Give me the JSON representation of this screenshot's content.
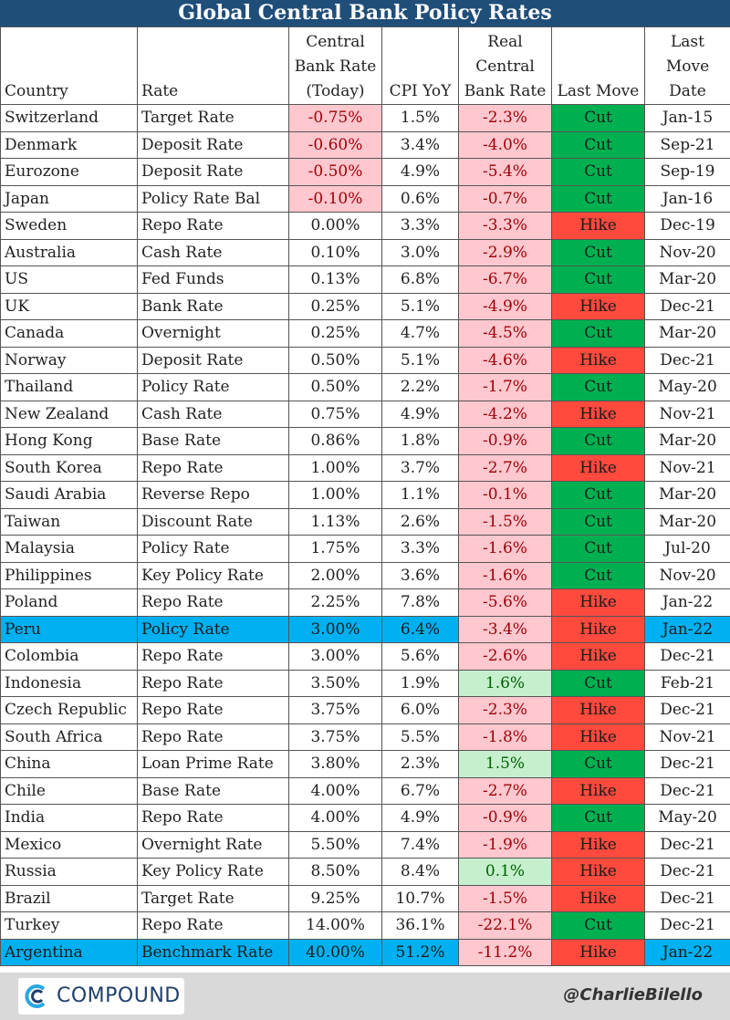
{
  "title": "Global Central Bank Policy Rates",
  "headers": {
    "country": "Country",
    "rate": "Rate",
    "cb_rate": [
      "Central",
      "Bank Rate",
      "(Today)"
    ],
    "cpi": "CPI YoY",
    "real": [
      "Real",
      "Central",
      "Bank Rate"
    ],
    "last_move": "Last Move",
    "last_move_date": [
      "Last",
      "Move",
      "Date"
    ]
  },
  "colors": {
    "header_bar": "#1f4e79",
    "negative_fill": "#ffc7ce",
    "positive_fill": "#c6efce",
    "cut": "#00b050",
    "hike": "#ff4a3d",
    "highlight_row": "#00b0f0"
  },
  "chart_data": {
    "type": "table",
    "title": "Global Central Bank Policy Rates",
    "columns": [
      "Country",
      "Rate",
      "Central Bank Rate (Today)",
      "CPI YoY",
      "Real Central Bank Rate",
      "Last Move",
      "Last Move Date"
    ],
    "highlighted_rows": [
      "Peru",
      "Argentina"
    ],
    "rows": [
      {
        "country": "Switzerland",
        "rate": "Target Rate",
        "cb_rate": "-0.75%",
        "cpi": "1.5%",
        "real": "-2.3%",
        "move": "Cut",
        "date": "Jan-15"
      },
      {
        "country": "Denmark",
        "rate": "Deposit Rate",
        "cb_rate": "-0.60%",
        "cpi": "3.4%",
        "real": "-4.0%",
        "move": "Cut",
        "date": "Sep-21"
      },
      {
        "country": "Eurozone",
        "rate": "Deposit Rate",
        "cb_rate": "-0.50%",
        "cpi": "4.9%",
        "real": "-5.4%",
        "move": "Cut",
        "date": "Sep-19"
      },
      {
        "country": "Japan",
        "rate": "Policy Rate Bal",
        "cb_rate": "-0.10%",
        "cpi": "0.6%",
        "real": "-0.7%",
        "move": "Cut",
        "date": "Jan-16"
      },
      {
        "country": "Sweden",
        "rate": "Repo Rate",
        "cb_rate": "0.00%",
        "cpi": "3.3%",
        "real": "-3.3%",
        "move": "Hike",
        "date": "Dec-19"
      },
      {
        "country": "Australia",
        "rate": "Cash Rate",
        "cb_rate": "0.10%",
        "cpi": "3.0%",
        "real": "-2.9%",
        "move": "Cut",
        "date": "Nov-20"
      },
      {
        "country": "US",
        "rate": "Fed Funds",
        "cb_rate": "0.13%",
        "cpi": "6.8%",
        "real": "-6.7%",
        "move": "Cut",
        "date": "Mar-20"
      },
      {
        "country": "UK",
        "rate": "Bank Rate",
        "cb_rate": "0.25%",
        "cpi": "5.1%",
        "real": "-4.9%",
        "move": "Hike",
        "date": "Dec-21"
      },
      {
        "country": "Canada",
        "rate": "Overnight",
        "cb_rate": "0.25%",
        "cpi": "4.7%",
        "real": "-4.5%",
        "move": "Cut",
        "date": "Mar-20"
      },
      {
        "country": "Norway",
        "rate": "Deposit Rate",
        "cb_rate": "0.50%",
        "cpi": "5.1%",
        "real": "-4.6%",
        "move": "Hike",
        "date": "Dec-21"
      },
      {
        "country": "Thailand",
        "rate": "Policy Rate",
        "cb_rate": "0.50%",
        "cpi": "2.2%",
        "real": "-1.7%",
        "move": "Cut",
        "date": "May-20"
      },
      {
        "country": "New Zealand",
        "rate": "Cash Rate",
        "cb_rate": "0.75%",
        "cpi": "4.9%",
        "real": "-4.2%",
        "move": "Hike",
        "date": "Nov-21"
      },
      {
        "country": "Hong Kong",
        "rate": "Base Rate",
        "cb_rate": "0.86%",
        "cpi": "1.8%",
        "real": "-0.9%",
        "move": "Cut",
        "date": "Mar-20"
      },
      {
        "country": "South Korea",
        "rate": "Repo Rate",
        "cb_rate": "1.00%",
        "cpi": "3.7%",
        "real": "-2.7%",
        "move": "Hike",
        "date": "Nov-21"
      },
      {
        "country": "Saudi Arabia",
        "rate": "Reverse Repo",
        "cb_rate": "1.00%",
        "cpi": "1.1%",
        "real": "-0.1%",
        "move": "Cut",
        "date": "Mar-20"
      },
      {
        "country": "Taiwan",
        "rate": "Discount Rate",
        "cb_rate": "1.13%",
        "cpi": "2.6%",
        "real": "-1.5%",
        "move": "Cut",
        "date": "Mar-20"
      },
      {
        "country": "Malaysia",
        "rate": "Policy Rate",
        "cb_rate": "1.75%",
        "cpi": "3.3%",
        "real": "-1.6%",
        "move": "Cut",
        "date": "Jul-20"
      },
      {
        "country": "Philippines",
        "rate": "Key Policy Rate",
        "cb_rate": "2.00%",
        "cpi": "3.6%",
        "real": "-1.6%",
        "move": "Cut",
        "date": "Nov-20"
      },
      {
        "country": "Poland",
        "rate": "Repo Rate",
        "cb_rate": "2.25%",
        "cpi": "7.8%",
        "real": "-5.6%",
        "move": "Hike",
        "date": "Jan-22"
      },
      {
        "country": "Peru",
        "rate": "Policy Rate",
        "cb_rate": "3.00%",
        "cpi": "6.4%",
        "real": "-3.4%",
        "move": "Hike",
        "date": "Jan-22"
      },
      {
        "country": "Colombia",
        "rate": "Repo Rate",
        "cb_rate": "3.00%",
        "cpi": "5.6%",
        "real": "-2.6%",
        "move": "Hike",
        "date": "Dec-21"
      },
      {
        "country": "Indonesia",
        "rate": "Repo Rate",
        "cb_rate": "3.50%",
        "cpi": "1.9%",
        "real": "1.6%",
        "move": "Cut",
        "date": "Feb-21"
      },
      {
        "country": "Czech Republic",
        "rate": "Repo Rate",
        "cb_rate": "3.75%",
        "cpi": "6.0%",
        "real": "-2.3%",
        "move": "Hike",
        "date": "Dec-21"
      },
      {
        "country": "South Africa",
        "rate": "Repo Rate",
        "cb_rate": "3.75%",
        "cpi": "5.5%",
        "real": "-1.8%",
        "move": "Hike",
        "date": "Nov-21"
      },
      {
        "country": "China",
        "rate": "Loan Prime Rate",
        "cb_rate": "3.80%",
        "cpi": "2.3%",
        "real": "1.5%",
        "move": "Cut",
        "date": "Dec-21"
      },
      {
        "country": "Chile",
        "rate": "Base Rate",
        "cb_rate": "4.00%",
        "cpi": "6.7%",
        "real": "-2.7%",
        "move": "Hike",
        "date": "Dec-21"
      },
      {
        "country": "India",
        "rate": "Repo Rate",
        "cb_rate": "4.00%",
        "cpi": "4.9%",
        "real": "-0.9%",
        "move": "Cut",
        "date": "May-20"
      },
      {
        "country": "Mexico",
        "rate": "Overnight Rate",
        "cb_rate": "5.50%",
        "cpi": "7.4%",
        "real": "-1.9%",
        "move": "Hike",
        "date": "Dec-21"
      },
      {
        "country": "Russia",
        "rate": "Key Policy Rate",
        "cb_rate": "8.50%",
        "cpi": "8.4%",
        "real": "0.1%",
        "move": "Hike",
        "date": "Dec-21"
      },
      {
        "country": "Brazil",
        "rate": "Target Rate",
        "cb_rate": "9.25%",
        "cpi": "10.7%",
        "real": "-1.5%",
        "move": "Hike",
        "date": "Dec-21"
      },
      {
        "country": "Turkey",
        "rate": "Repo Rate",
        "cb_rate": "14.00%",
        "cpi": "36.1%",
        "real": "-22.1%",
        "move": "Cut",
        "date": "Dec-21"
      },
      {
        "country": "Argentina",
        "rate": "Benchmark Rate",
        "cb_rate": "40.00%",
        "cpi": "51.2%",
        "real": "-11.2%",
        "move": "Hike",
        "date": "Jan-22"
      }
    ]
  },
  "footer": {
    "logo_text": "COMPOUND",
    "handle": "@CharlieBilello"
  }
}
